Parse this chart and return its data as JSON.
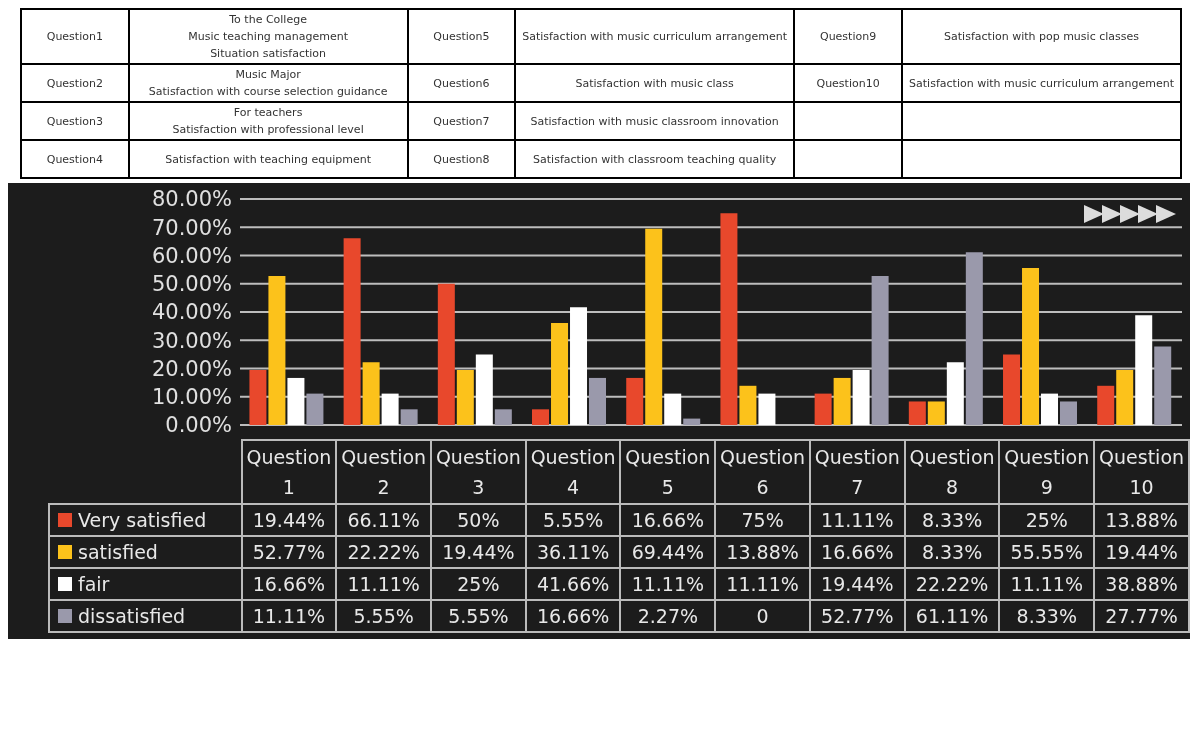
{
  "chart_data": {
    "type": "bar",
    "categories": [
      "Question1",
      "Question2",
      "Question3",
      "Question4",
      "Question5",
      "Question6",
      "Question7",
      "Question8",
      "Question9",
      "Question10"
    ],
    "series": [
      {
        "name": "Very satisfied",
        "color": "#e8482c",
        "values": [
          19.44,
          66.11,
          50,
          5.55,
          16.66,
          75,
          11.11,
          8.33,
          25,
          13.88
        ],
        "value_labels": [
          "19.44%",
          "66.11%",
          "50%",
          "5.55%",
          "16.66%",
          "75%",
          "11.11%",
          "8.33%",
          "25%",
          "13.88%"
        ]
      },
      {
        "name": "satisfied",
        "color": "#fcc21b",
        "values": [
          52.77,
          22.22,
          19.44,
          36.11,
          69.44,
          13.88,
          16.66,
          8.33,
          55.55,
          19.44
        ],
        "value_labels": [
          "52.77%",
          "22.22%",
          "19.44%",
          "36.11%",
          "69.44%",
          "13.88%",
          "16.66%",
          "8.33%",
          "55.55%",
          "19.44%"
        ]
      },
      {
        "name": "fair",
        "color": "#ffffff",
        "values": [
          16.66,
          11.11,
          25,
          41.66,
          11.11,
          11.11,
          19.44,
          22.22,
          11.11,
          38.88
        ],
        "value_labels": [
          "16.66%",
          "11.11%",
          "25%",
          "41.66%",
          "11.11%",
          "11.11%",
          "19.44%",
          "22.22%",
          "11.11%",
          "38.88%"
        ]
      },
      {
        "name": "dissatisfied",
        "color": "#9a99ab",
        "values": [
          11.11,
          5.55,
          5.55,
          16.66,
          2.27,
          0,
          52.77,
          61.11,
          8.33,
          27.77
        ],
        "value_labels": [
          "11.11%",
          "5.55%",
          "5.55%",
          "16.66%",
          "2.27%",
          "0",
          "52.77%",
          "61.11%",
          "8.33%",
          "27.77%"
        ]
      }
    ],
    "ylim": [
      0,
      80
    ],
    "yticks": [
      {
        "value": 0,
        "label": "0.00%"
      },
      {
        "value": 10,
        "label": "10.00%"
      },
      {
        "value": 20,
        "label": "20.00%"
      },
      {
        "value": 30,
        "label": "30.00%"
      },
      {
        "value": 40,
        "label": "40.00%"
      },
      {
        "value": 50,
        "label": "50.00%"
      },
      {
        "value": 60,
        "label": "60.00%"
      },
      {
        "value": 70,
        "label": "70.00%"
      },
      {
        "value": 80,
        "label": "80.00%"
      }
    ],
    "grid": "y",
    "legend": "bottom left",
    "annotations": [
      "Question1",
      "To the College\nMusic teaching management\nSituation satisfaction",
      "Question2",
      "Music Major\nSatisfaction with course selection guidance",
      "Question3",
      "For teachers\nSatisfaction with professional level",
      "Question4",
      "Satisfaction with teaching equipment",
      "Question5",
      "Satisfaction with music curriculum arrangement",
      "Question6",
      "Satisfaction with music class",
      "Question7",
      "Satisfaction with music classroom innovation",
      "Question8",
      "Satisfaction with classroom teaching quality",
      "Question9",
      "Satisfaction with pop music classes",
      "Question10",
      "Satisfaction with music curriculum arrangement"
    ]
  }
}
